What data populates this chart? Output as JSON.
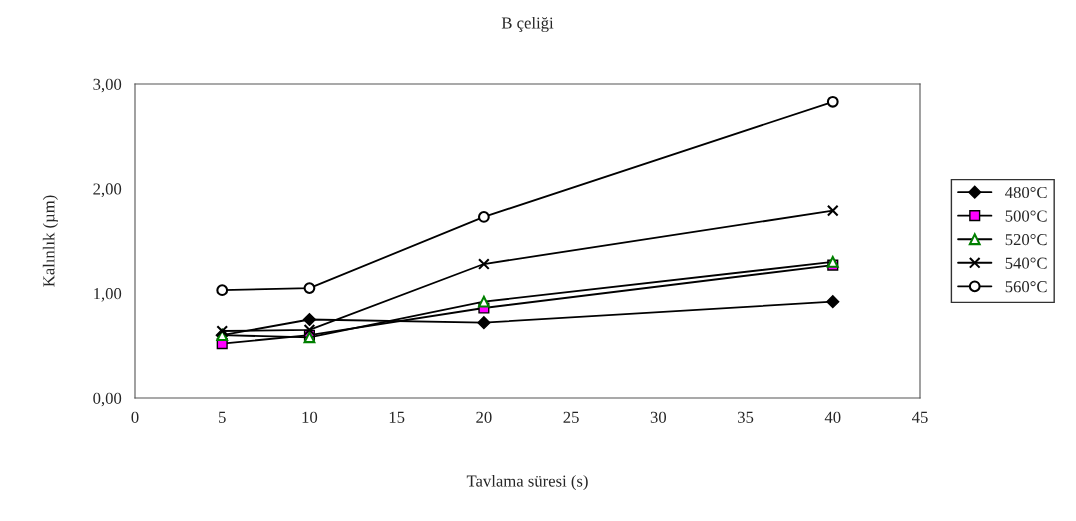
{
  "chart_data": {
    "type": "line",
    "title": "B çeliği",
    "xlabel": "Tavlama süresi (s)",
    "ylabel": "Kalınlık (µm)",
    "x": [
      5,
      10,
      20,
      40
    ],
    "series": [
      {
        "name": "480°C",
        "color": "#000000",
        "marker": "diamond",
        "values": [
          0.6,
          0.75,
          0.72,
          0.92
        ]
      },
      {
        "name": "500°C",
        "color": "#ff00ff",
        "marker": "square",
        "values": [
          0.52,
          0.6,
          0.86,
          1.27
        ]
      },
      {
        "name": "520°C",
        "color": "#008000",
        "marker": "triangle",
        "values": [
          0.6,
          0.58,
          0.92,
          1.3
        ]
      },
      {
        "name": "540°C",
        "color": "#000000",
        "marker": "cross",
        "values": [
          0.64,
          0.65,
          1.28,
          1.79
        ]
      },
      {
        "name": "560°C",
        "color": "#000000",
        "marker": "circle",
        "values": [
          1.03,
          1.05,
          1.73,
          2.83
        ]
      }
    ],
    "xlim": [
      0,
      45
    ],
    "xticks": [
      0,
      5,
      10,
      15,
      20,
      25,
      30,
      35,
      40,
      45
    ],
    "ylim": [
      0,
      3
    ],
    "yticks": [
      {
        "value": 0,
        "label": "0,00"
      },
      {
        "value": 1,
        "label": "1,00"
      },
      {
        "value": 2,
        "label": "2,00"
      },
      {
        "value": 3,
        "label": "3,00"
      }
    ],
    "grid": false,
    "legend": "right",
    "line_style": "solid"
  }
}
